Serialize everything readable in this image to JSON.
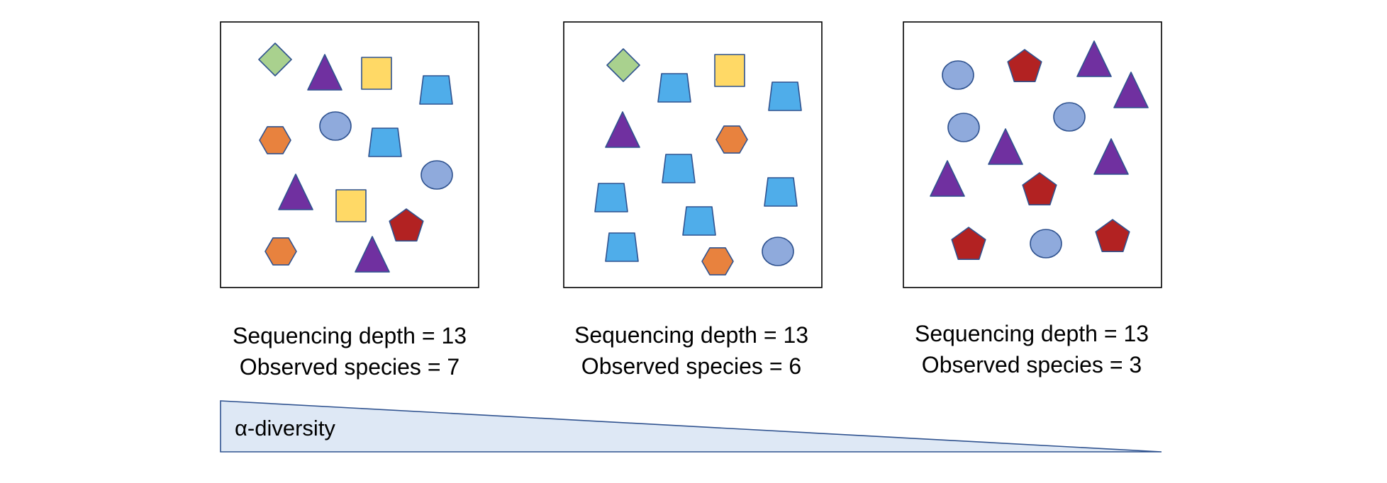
{
  "colors": {
    "diamond": "#A9D18E",
    "triangle": "#7030A0",
    "square": "#FFD966",
    "trapezoid": "#4FADEA",
    "hexagon": "#E8823E",
    "circle": "#8FAADC",
    "pentagon": "#B22222",
    "outline": "#2F528F",
    "wedge_fill": "#DEE8F5"
  },
  "samples": [
    {
      "depth_text": "Sequencing depth = 13",
      "species_text": "Observed species = 7",
      "sequencing_depth": 13,
      "observed_species": 7,
      "individuals": [
        "diamond",
        "triangle",
        "square",
        "trapezoid",
        "hexagon",
        "circle",
        "trapezoid",
        "circle",
        "triangle",
        "square",
        "pentagon",
        "hexagon",
        "triangle"
      ]
    },
    {
      "depth_text": "Sequencing depth = 13",
      "species_text": "Observed species = 6",
      "sequencing_depth": 13,
      "observed_species": 6,
      "individuals": [
        "diamond",
        "trapezoid",
        "square",
        "trapezoid",
        "triangle",
        "hexagon",
        "trapezoid",
        "trapezoid",
        "trapezoid",
        "trapezoid",
        "trapezoid",
        "hexagon",
        "circle"
      ]
    },
    {
      "depth_text": "Sequencing depth = 13",
      "species_text": "Observed species = 3",
      "sequencing_depth": 13,
      "observed_species": 3,
      "individuals": [
        "circle",
        "pentagon",
        "triangle",
        "triangle",
        "circle",
        "circle",
        "triangle",
        "triangle",
        "triangle",
        "pentagon",
        "pentagon",
        "circle",
        "pentagon"
      ]
    }
  ],
  "wedge": {
    "label": "α-diversity"
  }
}
